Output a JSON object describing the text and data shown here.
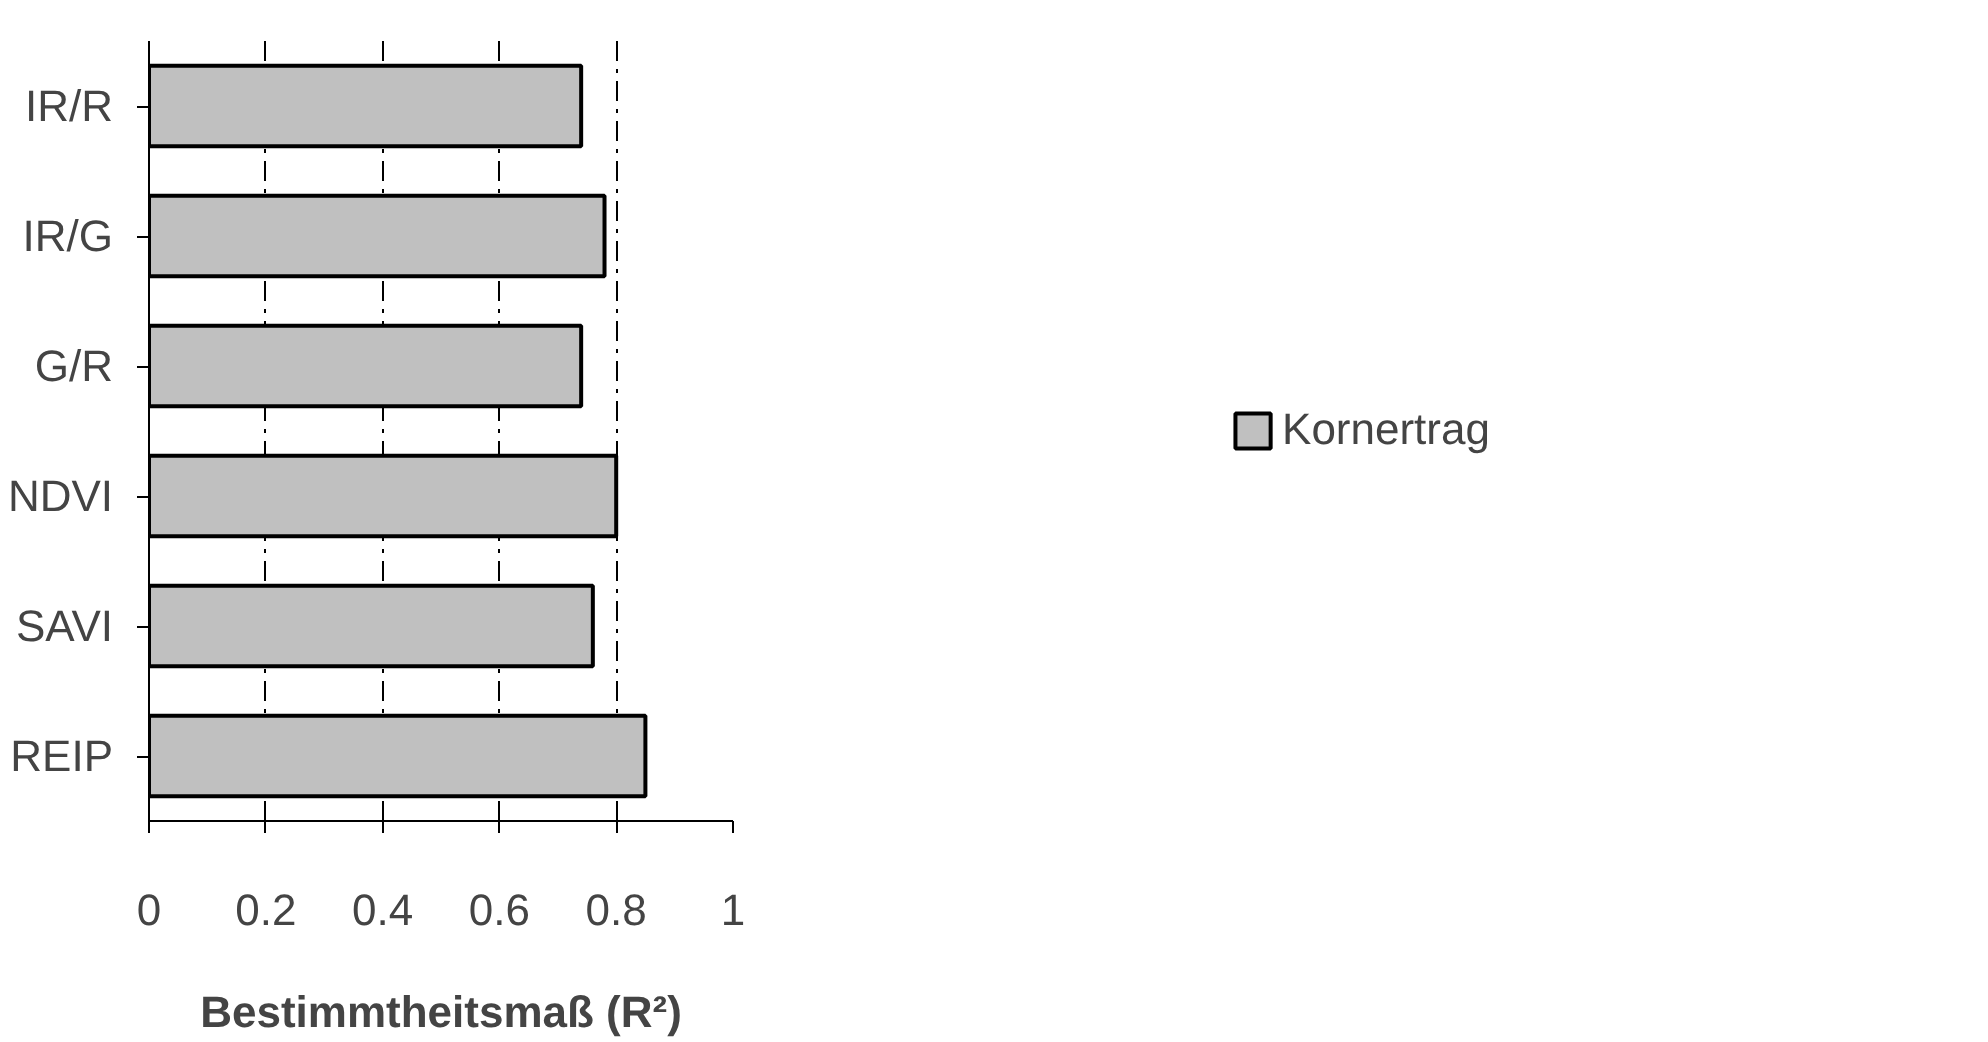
{
  "chart_data": {
    "type": "bar",
    "orientation": "horizontal",
    "categories": [
      "IR/R",
      "IR/G",
      "G/R",
      "NDVI",
      "SAVI",
      "REIP"
    ],
    "series": [
      {
        "name": "Kornertrag",
        "color": "#c0c0c0",
        "values": [
          0.74,
          0.78,
          0.74,
          0.8,
          0.76,
          0.85
        ]
      }
    ],
    "xlabel": "Bestimmtheitsmaß (R²)",
    "xlim": [
      0,
      1
    ],
    "xticks": [
      0,
      0.2,
      0.4,
      0.6,
      0.8,
      1
    ],
    "grid": "x",
    "legend": "right"
  }
}
